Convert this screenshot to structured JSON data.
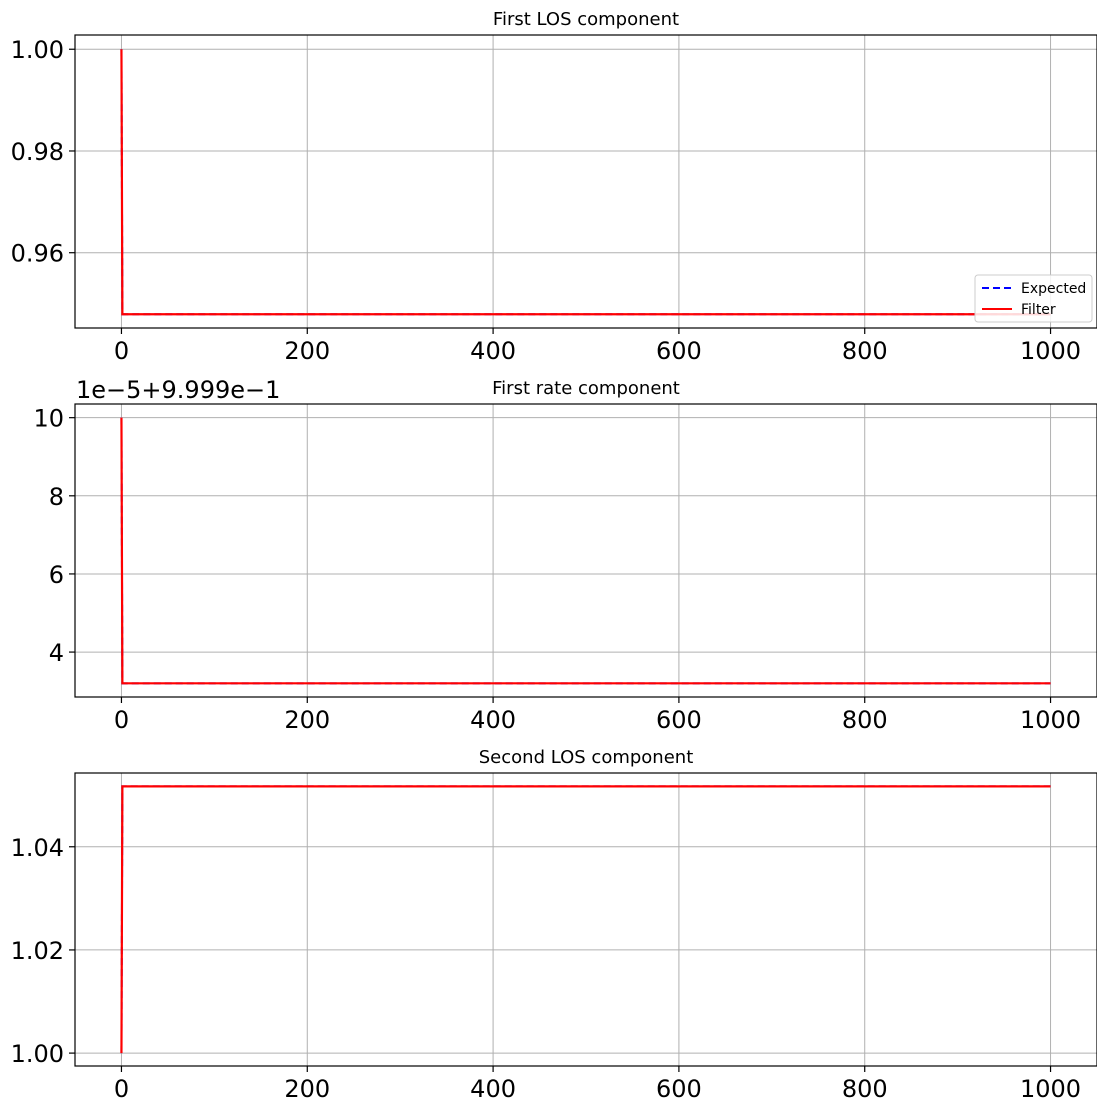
{
  "chart_data": [
    {
      "type": "line",
      "title": "First LOS component",
      "xlabel": "",
      "ylabel": "",
      "xlim": [
        -50,
        1050
      ],
      "ylim": [
        0.9452,
        1.0028
      ],
      "xticks": [
        0,
        200,
        400,
        600,
        800,
        1000
      ],
      "xtick_labels": [
        "0",
        "200",
        "400",
        "600",
        "800",
        "1000"
      ],
      "yticks": [
        0.96,
        0.98,
        1.0
      ],
      "ytick_labels": [
        "0.96",
        "0.98",
        "1.00"
      ],
      "y_offset_label": "",
      "grid": true,
      "legend": "lower-right",
      "series": [
        {
          "name": "Expected",
          "color": "#0000ff",
          "style": "dashed",
          "x": [
            0,
            1,
            1000
          ],
          "y": [
            1.0,
            0.9479,
            0.9479
          ]
        },
        {
          "name": "Filter",
          "color": "#ff0000",
          "style": "solid",
          "x": [
            0,
            1,
            1000
          ],
          "y": [
            1.0,
            0.9479,
            0.9479
          ]
        }
      ]
    },
    {
      "type": "line",
      "title": "First rate component",
      "xlabel": "",
      "ylabel": "",
      "xlim": [
        -50,
        1050
      ],
      "ylim": [
        2.85,
        10.35
      ],
      "xticks": [
        0,
        200,
        400,
        600,
        800,
        1000
      ],
      "xtick_labels": [
        "0",
        "200",
        "400",
        "600",
        "800",
        "1000"
      ],
      "yticks": [
        4,
        6,
        8,
        10
      ],
      "ytick_labels": [
        "4",
        "6",
        "8",
        "10"
      ],
      "y_offset_label": "1e−5+9.999e−1",
      "grid": true,
      "legend": "none",
      "series": [
        {
          "name": "Expected",
          "color": "#0000ff",
          "style": "dashed",
          "x": [
            0,
            1,
            1000
          ],
          "y": [
            10.0,
            3.2,
            3.2
          ]
        },
        {
          "name": "Filter",
          "color": "#ff0000",
          "style": "solid",
          "x": [
            0,
            1,
            1000
          ],
          "y": [
            10.0,
            3.2,
            3.2
          ]
        }
      ]
    },
    {
      "type": "line",
      "title": "Second LOS component",
      "xlabel": "",
      "ylabel": "",
      "xlim": [
        -50,
        1050
      ],
      "ylim": [
        0.9975,
        1.0543
      ],
      "xticks": [
        0,
        200,
        400,
        600,
        800,
        1000
      ],
      "xtick_labels": [
        "0",
        "200",
        "400",
        "600",
        "800",
        "1000"
      ],
      "yticks": [
        1.0,
        1.02,
        1.04
      ],
      "ytick_labels": [
        "1.00",
        "1.02",
        "1.04"
      ],
      "y_offset_label": "",
      "grid": true,
      "legend": "none",
      "series": [
        {
          "name": "Expected",
          "color": "#0000ff",
          "style": "dashed",
          "x": [
            0,
            1,
            1000
          ],
          "y": [
            1.0,
            1.0517,
            1.0517
          ]
        },
        {
          "name": "Filter",
          "color": "#ff0000",
          "style": "solid",
          "x": [
            0,
            1,
            1000
          ],
          "y": [
            1.0,
            1.0517,
            1.0517
          ]
        }
      ]
    }
  ]
}
